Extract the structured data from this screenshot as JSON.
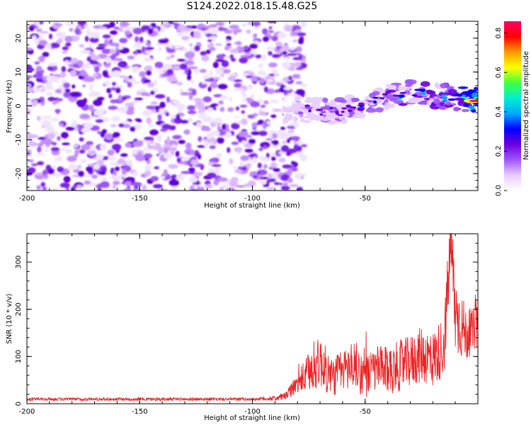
{
  "page_title": "S124.2022.018.15.48.G25",
  "colors": {
    "snr_line": "#ee2222",
    "spectral_colormap": [
      "#ffffff",
      "#e8ccff",
      "#9e55ff",
      "#6a00e0",
      "#0000ff",
      "#00a8ff",
      "#00f0d0",
      "#40ff40",
      "#ffff00",
      "#ff9900",
      "#ff0000",
      "#ff0066"
    ]
  },
  "chart_data": [
    {
      "type": "heatmap",
      "title": "",
      "xlabel": "Height of straight line (km)",
      "ylabel": "Frequency (Hz)",
      "xlim": [
        -200,
        0
      ],
      "ylim": [
        -25,
        25
      ],
      "x_ticks": [
        "-200",
        "-150",
        "-100",
        "-50"
      ],
      "y_ticks": [
        "-20",
        "-10",
        "0",
        "10",
        "20"
      ],
      "colorbar": {
        "label": "Normalized spectral amplitude",
        "range": [
          0,
          0.86
        ],
        "ticks": [
          "0.0",
          "0.2",
          "0.4",
          "0.6",
          "0.8"
        ]
      },
      "signal_ridge": {
        "x": [
          -80,
          -70,
          -60,
          -50,
          -40,
          -30,
          -20,
          -10,
          0
        ],
        "y": [
          -1,
          -1.5,
          -1.5,
          0.5,
          3,
          4,
          3,
          2.5,
          1.5
        ],
        "peak_amplitude": [
          0.25,
          0.3,
          0.35,
          0.4,
          0.45,
          0.45,
          0.5,
          0.55,
          0.86
        ]
      },
      "noise_region": {
        "x": [
          -200,
          -85
        ],
        "amplitude_range": [
          0.0,
          0.25
        ]
      }
    },
    {
      "type": "line",
      "title": "",
      "xlabel": "Height of straight line (km)",
      "ylabel": "SNR (10 * v/v)",
      "xlim": [
        -200,
        0
      ],
      "ylim": [
        0,
        360
      ],
      "x_ticks": [
        "-200",
        "-150",
        "-100",
        "-50"
      ],
      "y_ticks": [
        "0",
        "100",
        "200",
        "300"
      ],
      "series": [
        {
          "x": [
            -200,
            -180,
            -160,
            -140,
            -120,
            -100,
            -90,
            -85,
            -80,
            -75,
            -70,
            -65,
            -60,
            -55,
            -50,
            -45,
            -40,
            -35,
            -30,
            -25,
            -20,
            -15,
            -12,
            -10,
            -8,
            -5,
            -2,
            0
          ],
          "values": [
            10,
            10,
            10,
            10,
            10,
            10,
            12,
            18,
            45,
            70,
            95,
            60,
            75,
            90,
            60,
            80,
            75,
            85,
            95,
            110,
            100,
            130,
            355,
            200,
            180,
            150,
            160,
            170
          ],
          "noise_band": [
            3,
            3,
            3,
            3,
            3,
            3,
            5,
            8,
            20,
            40,
            50,
            40,
            40,
            50,
            40,
            45,
            45,
            50,
            50,
            55,
            55,
            60,
            80,
            80,
            70,
            50,
            40,
            40
          ]
        }
      ]
    }
  ]
}
